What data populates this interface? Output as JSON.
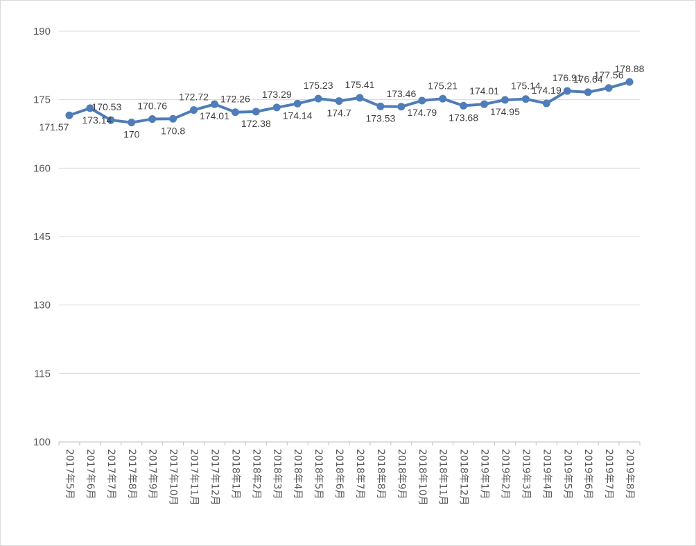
{
  "chart_data": {
    "type": "line",
    "title": "",
    "xlabel": "",
    "ylabel": "",
    "ylim": [
      100,
      190
    ],
    "y_ticks": [
      100,
      115,
      130,
      145,
      160,
      175,
      190
    ],
    "grid": true,
    "legend": "none",
    "colors": {
      "line": "#4F7DB8",
      "grid": "#d9d9d9",
      "axis": "#bfbfbf",
      "text": "#595959"
    },
    "categories": [
      "2017年5月",
      "2017年6月",
      "2017年7月",
      "2017年8月",
      "2017年9月",
      "2017年10月",
      "2017年11月",
      "2017年12月",
      "2018年1月",
      "2018年2月",
      "2018年3月",
      "2018年4月",
      "2018年5月",
      "2018年6月",
      "2018年7月",
      "2018年8月",
      "2018年9月",
      "2018年10月",
      "2018年11月",
      "2018年12月",
      "2019年1月",
      "2019年2月",
      "2019年3月",
      "2019年4月",
      "2019年5月",
      "2019年6月",
      "2019年7月",
      "2019年8月"
    ],
    "series": [
      {
        "values": [
          171.57,
          173.14,
          170.53,
          170,
          170.76,
          170.8,
          172.72,
          174.01,
          172.26,
          172.38,
          173.29,
          174.14,
          175.23,
          174.7,
          175.41,
          173.53,
          173.46,
          174.79,
          175.21,
          173.68,
          174.01,
          174.95,
          175.14,
          174.19,
          176.91,
          176.64,
          177.56,
          178.88
        ],
        "labels": [
          "171.57",
          "173.14",
          "170.53",
          "170",
          "170.76",
          "170.8",
          "172.72",
          "174.01",
          "172.26",
          "172.38",
          "173.29",
          "174.14",
          "175.23",
          "174.7",
          "175.41",
          "173.53",
          "173.46",
          "174.79",
          "175.21",
          "173.68",
          "174.01",
          "174.95",
          "175.14",
          "174.19",
          "176.91",
          "176.64",
          "177.56",
          "178.88"
        ]
      }
    ]
  }
}
